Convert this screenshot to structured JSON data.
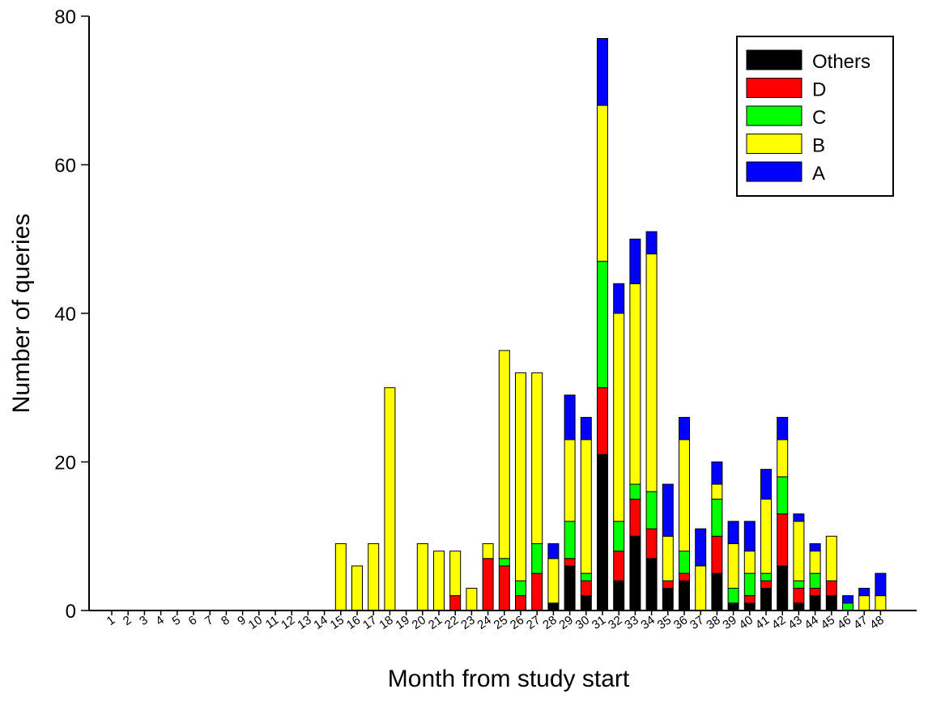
{
  "chart_data": {
    "type": "bar",
    "stacked": true,
    "xlabel": "Month from study start",
    "ylabel": "Number of queries",
    "ylim": [
      0,
      80
    ],
    "yticks": [
      0,
      20,
      40,
      60,
      80
    ],
    "categories": [
      "1",
      "2",
      "3",
      "4",
      "5",
      "6",
      "7",
      "8",
      "9",
      "10",
      "11",
      "12",
      "13",
      "14",
      "15",
      "16",
      "17",
      "18",
      "19",
      "20",
      "21",
      "22",
      "23",
      "24",
      "25",
      "26",
      "27",
      "28",
      "29",
      "30",
      "31",
      "32",
      "33",
      "34",
      "35",
      "36",
      "37",
      "38",
      "39",
      "40",
      "41",
      "42",
      "43",
      "44",
      "45",
      "46",
      "47",
      "48"
    ],
    "legend_position": "top-right",
    "series": [
      {
        "name": "Others",
        "color": "#000000",
        "values": [
          0,
          0,
          0,
          0,
          0,
          0,
          0,
          0,
          0,
          0,
          0,
          0,
          0,
          0,
          0,
          0,
          0,
          0,
          0,
          0,
          0,
          0,
          0,
          0,
          0,
          0,
          0,
          1,
          6,
          2,
          21,
          4,
          10,
          7,
          3,
          4,
          0,
          5,
          1,
          1,
          3,
          6,
          1,
          2,
          2,
          0,
          0,
          0
        ]
      },
      {
        "name": "D",
        "color": "#ff0000",
        "values": [
          0,
          0,
          0,
          0,
          0,
          0,
          0,
          0,
          0,
          0,
          0,
          0,
          0,
          0,
          0,
          0,
          0,
          0,
          0,
          0,
          0,
          2,
          0,
          7,
          6,
          2,
          5,
          0,
          1,
          2,
          9,
          4,
          5,
          4,
          1,
          1,
          0,
          5,
          0,
          1,
          1,
          7,
          2,
          1,
          2,
          0,
          0,
          0
        ]
      },
      {
        "name": "C",
        "color": "#00ff00",
        "values": [
          0,
          0,
          0,
          0,
          0,
          0,
          0,
          0,
          0,
          0,
          0,
          0,
          0,
          0,
          0,
          0,
          0,
          0,
          0,
          0,
          0,
          0,
          0,
          0,
          1,
          2,
          4,
          0,
          5,
          1,
          17,
          4,
          2,
          5,
          0,
          3,
          0,
          5,
          2,
          3,
          1,
          5,
          1,
          2,
          0,
          1,
          0,
          0
        ]
      },
      {
        "name": "B",
        "color": "#ffff00",
        "values": [
          0,
          0,
          0,
          0,
          0,
          0,
          0,
          0,
          0,
          0,
          0,
          0,
          0,
          0,
          9,
          6,
          9,
          30,
          0,
          9,
          8,
          6,
          3,
          2,
          28,
          28,
          23,
          6,
          11,
          18,
          21,
          28,
          27,
          32,
          6,
          15,
          6,
          2,
          6,
          3,
          10,
          5,
          8,
          3,
          6,
          0,
          2,
          2
        ]
      },
      {
        "name": "A",
        "color": "#0000ff",
        "values": [
          0,
          0,
          0,
          0,
          0,
          0,
          0,
          0,
          0,
          0,
          0,
          0,
          0,
          0,
          0,
          0,
          0,
          0,
          0,
          0,
          0,
          0,
          0,
          0,
          0,
          0,
          0,
          2,
          6,
          3,
          9,
          4,
          6,
          3,
          7,
          3,
          5,
          3,
          3,
          4,
          4,
          3,
          1,
          1,
          0,
          1,
          1,
          3
        ]
      }
    ]
  }
}
